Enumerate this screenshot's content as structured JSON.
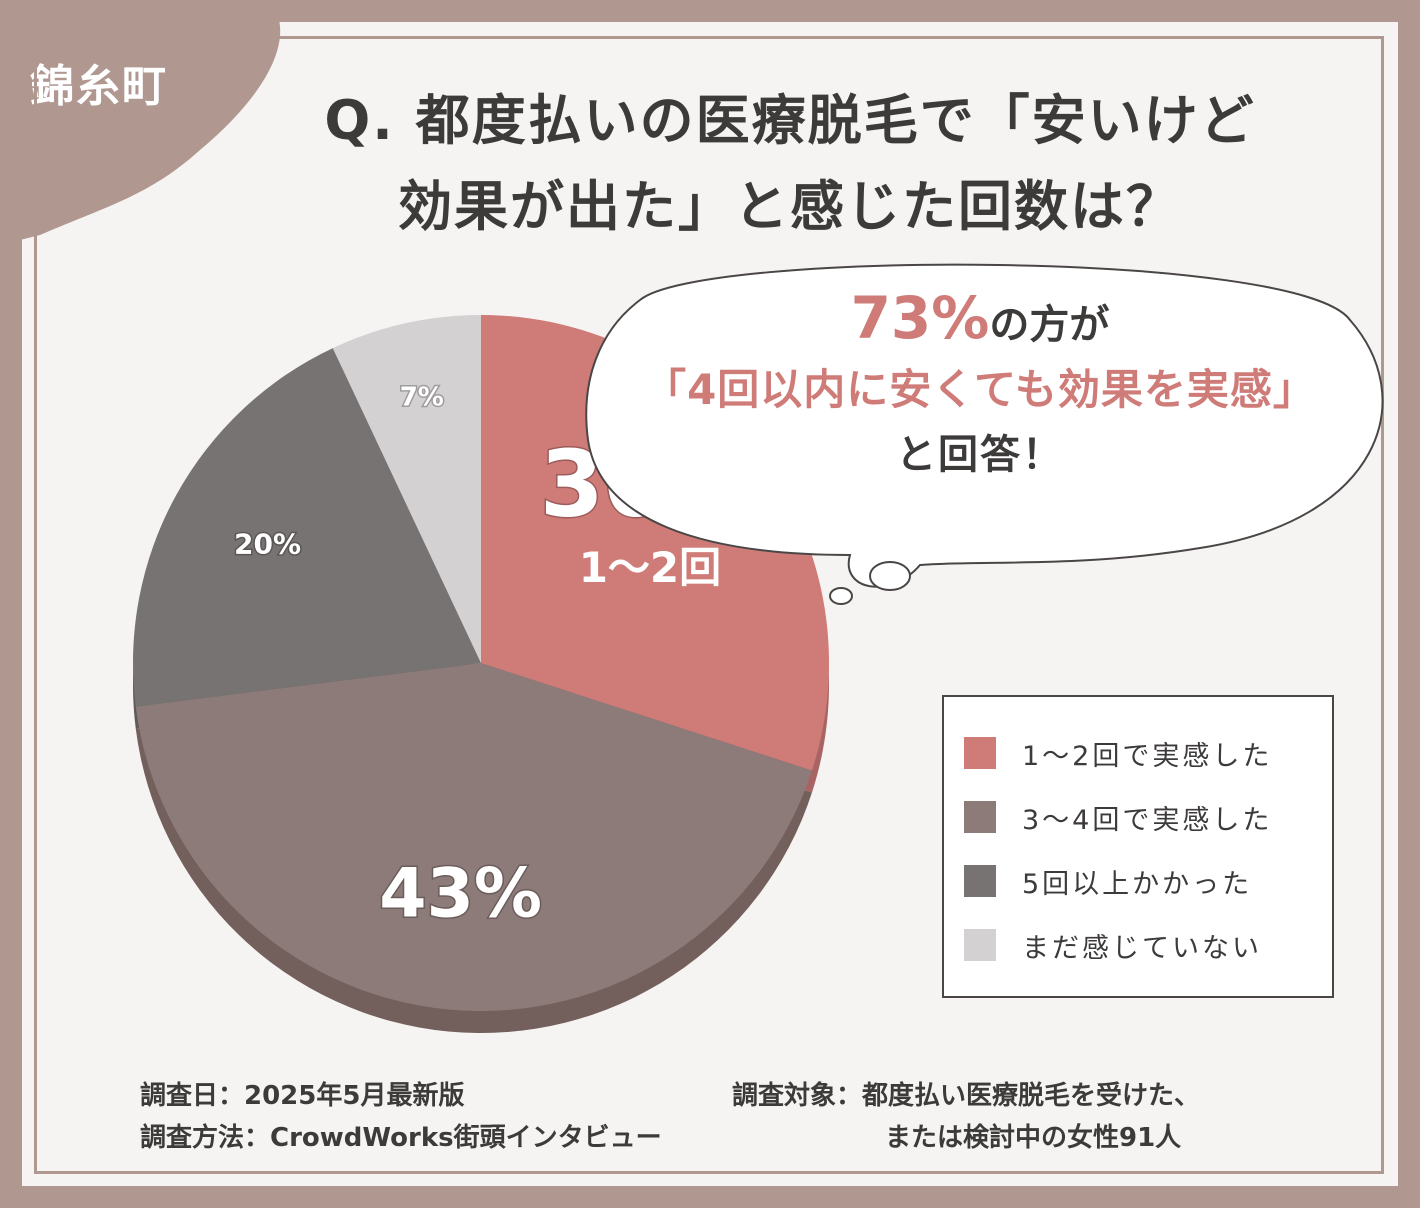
{
  "location_label": "錦糸町",
  "title_lines": [
    "Q. 都度払いの医療脱毛で「安いけど",
    "効果が出た」と感じた回数は？"
  ],
  "callout": {
    "percent": "73%",
    "line1_rest": "の方が",
    "line2": "「4回以内に安くても効果を実感」",
    "line3": "と回答！"
  },
  "colors": {
    "background_frame": "#b09891",
    "slice_1": "#cf7b78",
    "slice_2": "#8c7b78",
    "slice_3": "#777372",
    "slice_4": "#d3d1d1",
    "accent_text": "#cf7b78"
  },
  "chart_data": {
    "type": "pie",
    "title": "Q. 都度払いの医療脱毛で「安いけど効果が出た」と感じた回数は？",
    "categories": [
      "1〜2回で実感した",
      "3〜4回で実感した",
      "5回以上かかった",
      "まだ感じていない"
    ],
    "values": [
      30,
      43,
      20,
      7
    ],
    "slice_labels": [
      "30%",
      "43%",
      "20%",
      "7%"
    ],
    "highlight_sublabel": "1〜2回",
    "legend_position": "right"
  },
  "legend": {
    "items": [
      {
        "label": "1〜2回で実感した"
      },
      {
        "label": "3〜4回で実感した"
      },
      {
        "label": "5回以上かかった"
      },
      {
        "label": "まだ感じていない"
      }
    ]
  },
  "footer": {
    "date": "調査日：2025年5月最新版",
    "method": "調査方法：CrowdWorks街頭インタビュー",
    "target_line1": "調査対象：都度払い医療脱毛を受けた、",
    "target_line2": "または検討中の女性91人"
  }
}
